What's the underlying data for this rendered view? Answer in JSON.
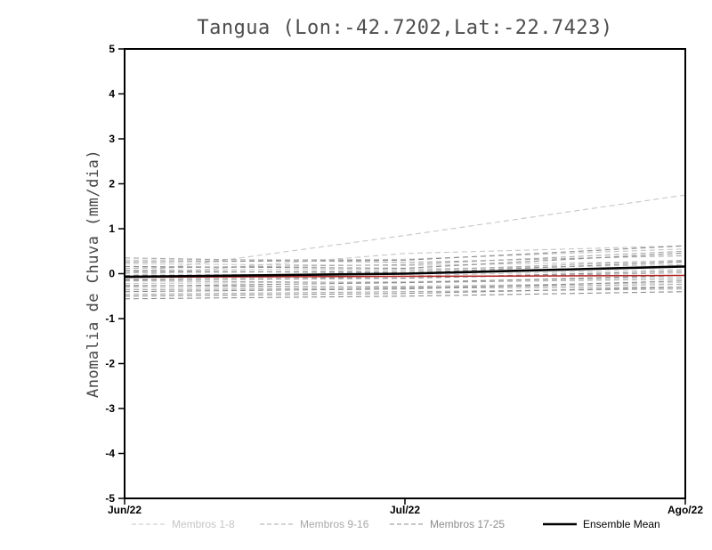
{
  "figure": {
    "background": "#ffffff",
    "frame_color": "#000000"
  },
  "chart_data": {
    "type": "line",
    "title": "Tangua (Lon:-42.7202,Lat:-22.7423)",
    "title_color": "#4d4d4d",
    "ylabel": "Anomalia de Chuva (mm/dia)",
    "ylabel_color": "#474747",
    "xlabel": "",
    "x_categories": [
      "Jun/22",
      "Jul/22",
      "Ago/22"
    ],
    "ylim": [
      -5,
      5
    ],
    "y_ticks": [
      5,
      4,
      3,
      2,
      1,
      0,
      -1,
      -2,
      -3,
      -4,
      -5
    ],
    "grid": "off",
    "legend_position": "bottom",
    "series_groups": [
      {
        "name": "Membros 1-8",
        "color": "#c5c5c5",
        "style": "dashed",
        "members": [
          [
            0.3,
            0.32,
            0.55
          ],
          [
            0.22,
            0.18,
            0.28
          ],
          [
            0.0,
            0.85,
            1.75
          ],
          [
            -0.05,
            0.45,
            0.62
          ],
          [
            0.08,
            0.1,
            0.2
          ],
          [
            -0.12,
            -0.05,
            0.1
          ],
          [
            -0.22,
            -0.18,
            -0.08
          ],
          [
            -0.32,
            -0.28,
            -0.2
          ]
        ]
      },
      {
        "name": "Membros 9-16",
        "color": "#a8a8a8",
        "style": "dashed",
        "members": [
          [
            0.35,
            0.25,
            0.4
          ],
          [
            0.12,
            0.2,
            0.5
          ],
          [
            0.02,
            0.06,
            0.3
          ],
          [
            -0.06,
            -0.1,
            0.02
          ],
          [
            -0.16,
            -0.2,
            -0.12
          ],
          [
            -0.26,
            -0.3,
            -0.24
          ],
          [
            -0.36,
            -0.32,
            -0.3
          ],
          [
            -0.46,
            -0.4,
            -0.34
          ]
        ]
      },
      {
        "name": "Membros 17-25",
        "color": "#8c8c8c",
        "style": "dashed",
        "members": [
          [
            0.26,
            0.3,
            0.62
          ],
          [
            0.16,
            0.12,
            0.46
          ],
          [
            0.06,
            0.02,
            0.26
          ],
          [
            -0.04,
            0.0,
            0.16
          ],
          [
            -0.14,
            -0.1,
            0.06
          ],
          [
            -0.28,
            -0.2,
            -0.04
          ],
          [
            -0.4,
            -0.34,
            -0.16
          ],
          [
            -0.5,
            -0.44,
            -0.3
          ],
          [
            -0.56,
            -0.5,
            -0.4
          ]
        ]
      }
    ],
    "ensemble_mean": {
      "name": "Ensemble Mean",
      "color": "#000000",
      "style": "solid",
      "values": [
        -0.07,
        0.0,
        0.16
      ]
    },
    "reference_line": {
      "name": "reference-line",
      "color": "#b22222",
      "style": "solid",
      "values": [
        -0.08,
        -0.06,
        -0.04
      ]
    },
    "legend": [
      {
        "label": "Membros 1-8",
        "color": "#c5c5c5",
        "style": "dashed"
      },
      {
        "label": "Membros 9-16",
        "color": "#a8a8a8",
        "style": "dashed"
      },
      {
        "label": "Membros 17-25",
        "color": "#8c8c8c",
        "style": "dashed"
      },
      {
        "label": "Ensemble Mean",
        "color": "#000000",
        "style": "solid"
      }
    ]
  }
}
